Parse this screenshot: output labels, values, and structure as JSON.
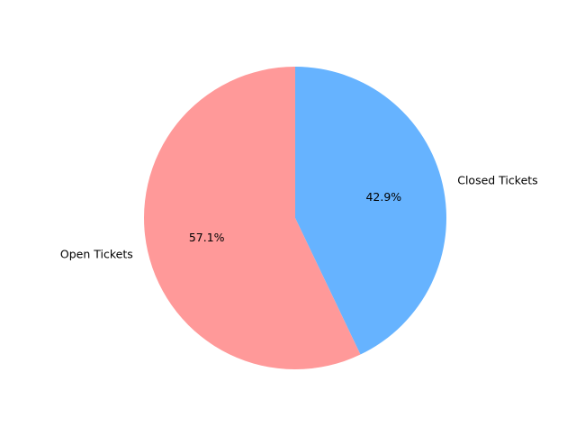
{
  "chart_data": {
    "type": "pie",
    "title": "",
    "slices": [
      {
        "label": "Closed Tickets",
        "value": 42.9,
        "pct_label": "42.9%",
        "color": "#66b3ff"
      },
      {
        "label": "Open Tickets",
        "value": 57.1,
        "pct_label": "57.1%",
        "color": "#ff9999"
      }
    ],
    "start_angle_deg": 90,
    "direction": "clockwise"
  }
}
